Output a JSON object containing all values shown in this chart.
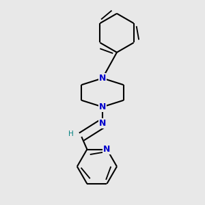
{
  "bg_color": "#e8e8e8",
  "bond_color": "#000000",
  "nitrogen_color": "#0000cc",
  "line_width": 1.5,
  "figsize": [
    3.0,
    3.0
  ],
  "dpi": 100,
  "xlim": [
    0.15,
    0.85
  ],
  "ylim": [
    0.05,
    0.97
  ]
}
